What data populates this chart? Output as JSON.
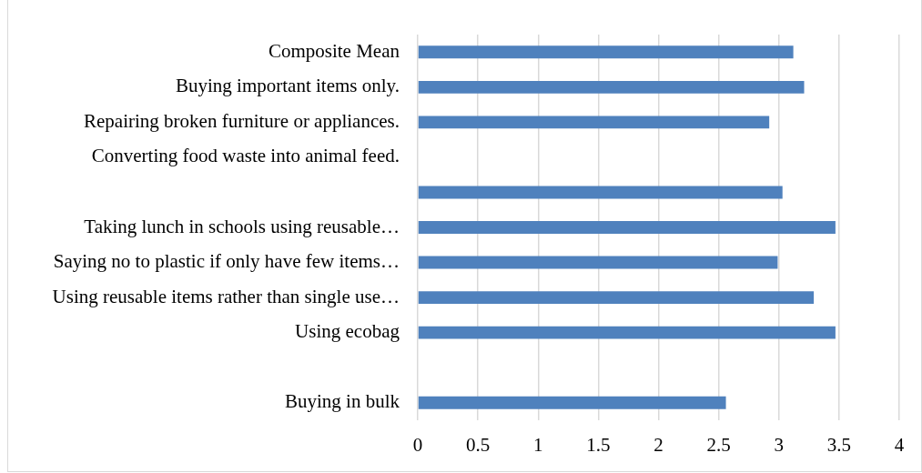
{
  "chart_data": {
    "type": "bar",
    "orientation": "horizontal",
    "categories": [
      "Composite Mean",
      "Buying important items only.",
      "Repairing broken furniture or appliances.",
      "Converting food waste into animal feed.",
      null,
      "Taking lunch in schools using reusable…",
      "Saying no to plastic if only have few items…",
      "Using reusable items rather than single use…",
      "Using ecobag",
      null,
      "Buying in bulk"
    ],
    "values": [
      3.12,
      3.21,
      2.92,
      null,
      3.03,
      3.47,
      2.99,
      3.29,
      3.47,
      null,
      2.56
    ],
    "color": "#4f81bd",
    "xlim": [
      0,
      4
    ],
    "xticks": [
      0,
      0.5,
      1,
      1.5,
      2,
      2.5,
      3,
      3.5,
      4
    ],
    "grid": "x",
    "legend": false
  }
}
